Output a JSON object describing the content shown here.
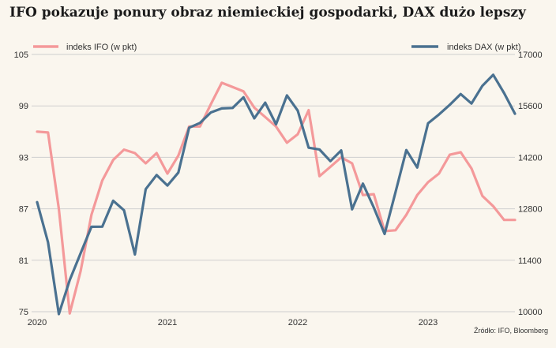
{
  "header": {
    "title": "IFO pokazuje ponury obraz niemieckiej gospodarki, DAX dużo lepszy"
  },
  "source": "Źródło: IFO, Bloomberg",
  "colors": {
    "ifo": "#f4999a",
    "dax": "#4a7190",
    "grid": "#cfcfcf",
    "background": "#faf6ee"
  },
  "chart_data": {
    "type": "line",
    "title": "IFO pokazuje ponury obraz niemieckiej gospodarki, DAX dużo lepszy",
    "x": [
      "2020-01",
      "2020-02",
      "2020-03",
      "2020-04",
      "2020-05",
      "2020-06",
      "2020-07",
      "2020-08",
      "2020-09",
      "2020-10",
      "2020-11",
      "2020-12",
      "2021-01",
      "2021-02",
      "2021-03",
      "2021-04",
      "2021-05",
      "2021-06",
      "2021-07",
      "2021-08",
      "2021-09",
      "2021-10",
      "2021-11",
      "2021-12",
      "2022-01",
      "2022-02",
      "2022-03",
      "2022-04",
      "2022-05",
      "2022-06",
      "2022-07",
      "2022-08",
      "2022-09",
      "2022-10",
      "2022-11",
      "2022-12",
      "2023-01",
      "2023-02",
      "2023-03",
      "2023-04",
      "2023-05",
      "2023-06",
      "2023-07",
      "2023-08",
      "2023-09"
    ],
    "x_tick_labels": [
      "2020",
      "2021",
      "2022",
      "2023"
    ],
    "x_tick_dates": [
      "2020-01",
      "2021-01",
      "2022-01",
      "2023-01"
    ],
    "series": [
      {
        "name": "indeks IFO (w pkt)",
        "axis": "left",
        "values": [
          96.0,
          95.9,
          87.0,
          74.8,
          79.7,
          86.3,
          90.3,
          92.7,
          93.9,
          93.5,
          92.3,
          93.5,
          91.1,
          93.2,
          96.6,
          96.6,
          99.2,
          101.7,
          101.2,
          100.7,
          98.8,
          97.7,
          96.6,
          94.7,
          95.7,
          98.5,
          90.8,
          91.9,
          93.0,
          92.3,
          88.6,
          88.7,
          84.4,
          84.5,
          86.3,
          88.6,
          90.1,
          91.1,
          93.3,
          93.6,
          91.7,
          88.5,
          87.3,
          85.7,
          85.7
        ]
      },
      {
        "name": "indeks DAX (w pkt)",
        "axis": "right",
        "values": [
          12980,
          11890,
          9936,
          10862,
          11587,
          12310,
          12313,
          13020,
          12761,
          11556,
          13335,
          13719,
          13433,
          13786,
          15008,
          15136,
          15421,
          15531,
          15544,
          15835,
          15260,
          15688,
          15100,
          15885,
          15471,
          14461,
          14415,
          14098,
          14388,
          12784,
          13484,
          12835,
          12114,
          13254,
          14397,
          13924,
          15128,
          15365,
          15629,
          15922,
          15664,
          16148,
          16447,
          15947,
          15387
        ]
      }
    ],
    "y_left": {
      "ticks": [
        75,
        81,
        87,
        93,
        99,
        105
      ],
      "range": [
        75,
        105
      ]
    },
    "y_right": {
      "ticks": [
        10000,
        11400,
        12800,
        14200,
        15600,
        17000
      ],
      "range": [
        10000,
        17000
      ]
    },
    "grid": true,
    "legend": "top"
  }
}
